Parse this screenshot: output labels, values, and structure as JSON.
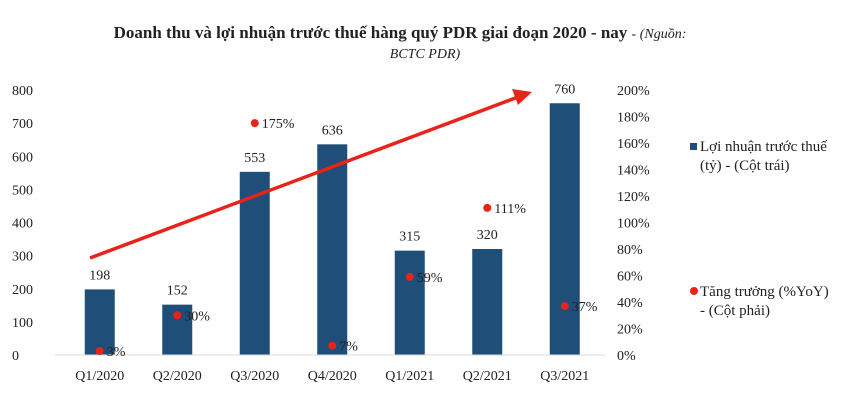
{
  "chart_data": {
    "type": "bar",
    "title": "Doanh thu và lợi nhuận trước thuế hàng quý PDR giai đoạn 2020 - nay",
    "source_line1": "- (Nguồn:",
    "source_line2": "BCTC PDR)",
    "categories": [
      "Q1/2020",
      "Q2/2020",
      "Q3/2020",
      "Q4/2020",
      "Q1/2021",
      "Q2/2021",
      "Q3/2021"
    ],
    "series": [
      {
        "name": "Lợi nhuận trước thuế (tỷ) - (Cột trái)",
        "legend_line1": "Lợi nhuận trước thuế",
        "legend_line2": "(tỷ) - (Cột trái)",
        "type": "bar",
        "axis": "left",
        "color": "#1F4E79",
        "values": [
          198,
          152,
          553,
          636,
          315,
          320,
          760
        ],
        "labels": [
          "198",
          "152",
          "553",
          "636",
          "315",
          "320",
          "760"
        ]
      },
      {
        "name": "Tăng trưởng (%YoY) - (Cột phải)",
        "legend_line1": "Tăng trưởng (%YoY)",
        "legend_line2": "- (Cột phải)",
        "type": "scatter",
        "axis": "right",
        "color": "#E8231A",
        "values": [
          3,
          30,
          175,
          7,
          59,
          111,
          37
        ],
        "labels": [
          "3%",
          "30%",
          "175%",
          "7%",
          "59%",
          "111%",
          "37%"
        ]
      }
    ],
    "left_axis": {
      "ylim": [
        0,
        800
      ],
      "ticks": [
        "0",
        "100",
        "200",
        "300",
        "400",
        "500",
        "600",
        "700",
        "800"
      ]
    },
    "right_axis": {
      "ylim": [
        0,
        200
      ],
      "ticks": [
        "0%",
        "20%",
        "40%",
        "60%",
        "80%",
        "100%",
        "120%",
        "140%",
        "160%",
        "180%",
        "200%"
      ]
    },
    "trend_arrow": {
      "color": "#E8231A"
    },
    "grid": false,
    "legend_placement": "right"
  }
}
